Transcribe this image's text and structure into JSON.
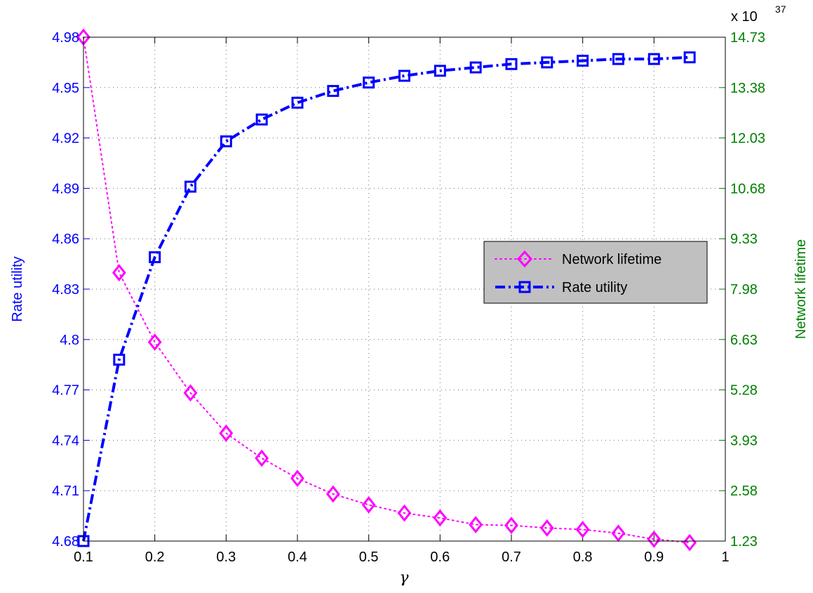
{
  "chart_data": {
    "type": "line",
    "xlabel": "γ",
    "y_left_label": "Rate utility",
    "y_right_label": "Network lifetime",
    "y_right_multiplier": "x 10",
    "y_right_exponent": "37",
    "xlim": [
      0.1,
      1.0
    ],
    "ylim_left": [
      4.68,
      4.98
    ],
    "ylim_right": [
      1.23,
      14.73
    ],
    "x_ticks": [
      "0.1",
      "0.2",
      "0.3",
      "0.4",
      "0.5",
      "0.6",
      "0.7",
      "0.8",
      "0.9",
      "1"
    ],
    "y_left_ticks": [
      "4.68",
      "4.71",
      "4.74",
      "4.77",
      "4.8",
      "4.83",
      "4.86",
      "4.89",
      "4.92",
      "4.95",
      "4.98"
    ],
    "y_right_ticks": [
      "1.23",
      "2.58",
      "3.93",
      "5.28",
      "6.63",
      "7.98",
      "9.33",
      "10.68",
      "12.03",
      "13.38",
      "14.73"
    ],
    "grid": true,
    "legend_position": "center-right",
    "colors": {
      "left_axis": "#0000ff",
      "right_axis": "#008000",
      "lifetime": "#ff00ff",
      "utility": "#0000ff"
    },
    "x": [
      0.1,
      0.15,
      0.2,
      0.25,
      0.3,
      0.35,
      0.4,
      0.45,
      0.5,
      0.55,
      0.6,
      0.65,
      0.7,
      0.75,
      0.8,
      0.85,
      0.9,
      0.95
    ],
    "series": [
      {
        "name": "Network lifetime",
        "axis": "right",
        "marker": "diamond",
        "line_style": "dotted",
        "values": [
          14.73,
          8.42,
          6.56,
          5.2,
          4.12,
          3.45,
          2.91,
          2.49,
          2.2,
          1.98,
          1.85,
          1.67,
          1.65,
          1.58,
          1.54,
          1.44,
          1.28,
          1.19
        ]
      },
      {
        "name": "Rate utility",
        "axis": "left",
        "marker": "square",
        "line_style": "dash-dot",
        "values": [
          4.68,
          4.788,
          4.849,
          4.891,
          4.918,
          4.931,
          4.941,
          4.948,
          4.953,
          4.957,
          4.96,
          4.962,
          4.964,
          4.965,
          4.966,
          4.967,
          4.967,
          4.968
        ]
      }
    ]
  }
}
